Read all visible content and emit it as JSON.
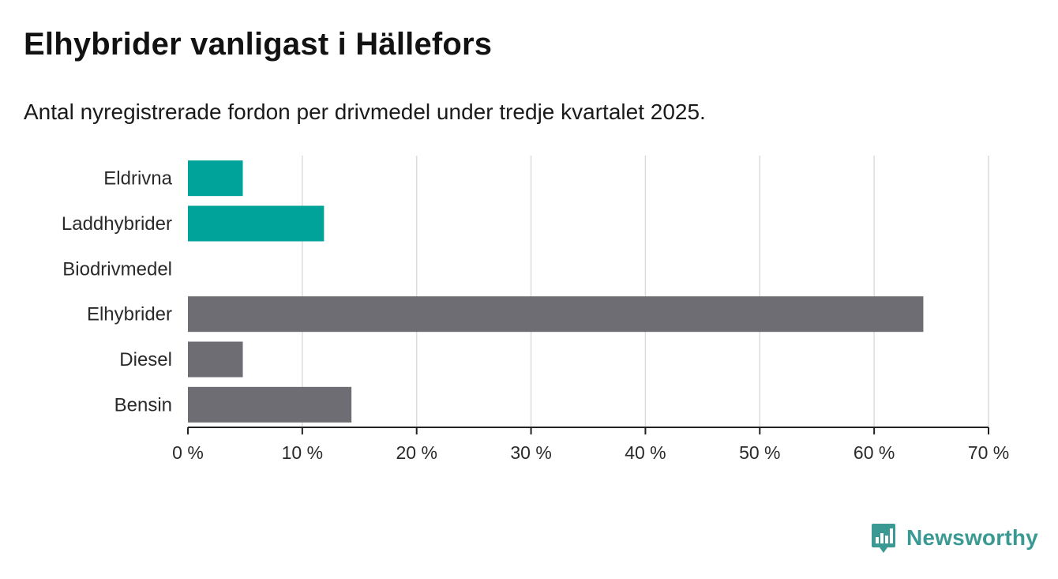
{
  "header": {
    "title": "Elhybrider vanligast i Hällefors",
    "subtitle": "Antal nyregistrerade fordon per drivmedel under tredje kvartalet 2025."
  },
  "chart_data": {
    "type": "bar",
    "orientation": "horizontal",
    "categories": [
      "Eldrivna",
      "Laddhybrider",
      "Biodrivmedel",
      "Elhybrider",
      "Diesel",
      "Bensin"
    ],
    "values": [
      4.8,
      11.9,
      0,
      64.3,
      4.8,
      14.3
    ],
    "colors": [
      "#00a39a",
      "#00a39a",
      "#00a39a",
      "#6e6d74",
      "#6e6d74",
      "#6e6d74"
    ],
    "xlim": [
      0,
      70
    ],
    "ticks": [
      0,
      10,
      20,
      30,
      40,
      50,
      60,
      70
    ],
    "tick_labels": [
      "0 %",
      "10 %",
      "20 %",
      "30 %",
      "40 %",
      "50 %",
      "60 %",
      "70 %"
    ],
    "grid": true,
    "xlabel": "",
    "ylabel": ""
  },
  "brand": {
    "name": "Newsworthy",
    "color": "#3a9a93"
  }
}
